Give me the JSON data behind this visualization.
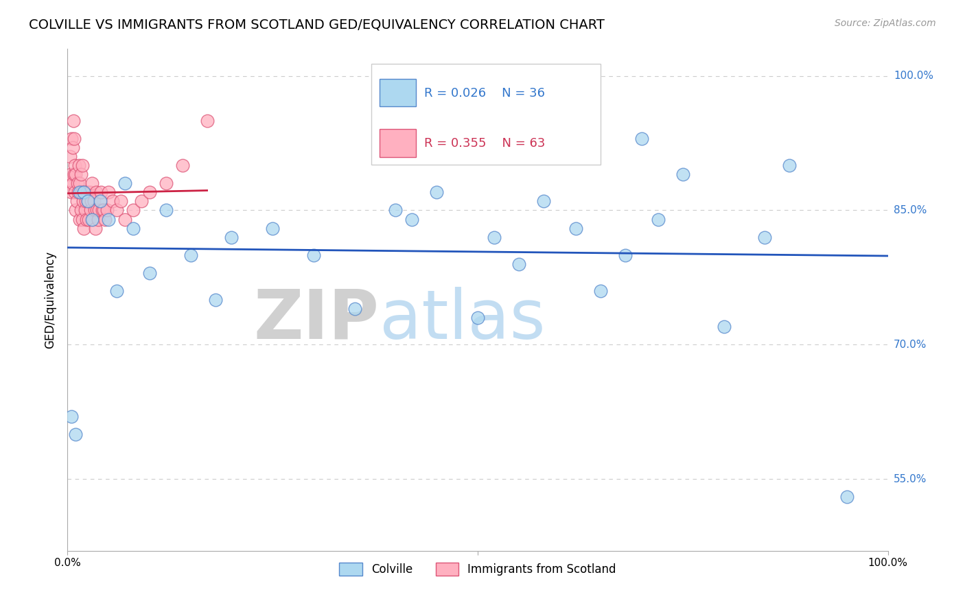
{
  "title": "COLVILLE VS IMMIGRANTS FROM SCOTLAND GED/EQUIVALENCY CORRELATION CHART",
  "source_text": "Source: ZipAtlas.com",
  "ylabel": "GED/Equivalency",
  "x_min": 0.0,
  "x_max": 1.0,
  "y_min": 0.47,
  "y_max": 1.03,
  "ytick_positions": [
    0.55,
    0.7,
    0.85,
    1.0
  ],
  "ytick_labels": [
    "55.0%",
    "70.0%",
    "85.0%",
    "100.0%"
  ],
  "xtick_positions": [
    0.0,
    0.5,
    1.0
  ],
  "xtick_labels": [
    "0.0%",
    "",
    "100.0%"
  ],
  "grid_color": "#cccccc",
  "colville_color": "#add8f0",
  "colville_edge_color": "#5588cc",
  "scotland_color": "#ffb0c0",
  "scotland_edge_color": "#dd5577",
  "colville_R": 0.026,
  "colville_N": 36,
  "scotland_R": 0.355,
  "scotland_N": 63,
  "colville_line_color": "#2255bb",
  "scotland_line_color": "#cc2244",
  "legend_R_color_colville": "#3377cc",
  "legend_R_color_scotland": "#cc3355",
  "colville_x": [
    0.005,
    0.01,
    0.015,
    0.02,
    0.025,
    0.03,
    0.04,
    0.05,
    0.06,
    0.07,
    0.08,
    0.1,
    0.12,
    0.15,
    0.18,
    0.2,
    0.25,
    0.3,
    0.35,
    0.4,
    0.42,
    0.45,
    0.5,
    0.52,
    0.55,
    0.58,
    0.62,
    0.65,
    0.68,
    0.7,
    0.72,
    0.75,
    0.8,
    0.85,
    0.88,
    0.95
  ],
  "colville_y": [
    0.62,
    0.6,
    0.87,
    0.87,
    0.86,
    0.84,
    0.86,
    0.84,
    0.76,
    0.88,
    0.83,
    0.78,
    0.85,
    0.8,
    0.75,
    0.82,
    0.83,
    0.8,
    0.74,
    0.85,
    0.84,
    0.87,
    0.73,
    0.82,
    0.79,
    0.86,
    0.83,
    0.76,
    0.8,
    0.93,
    0.84,
    0.89,
    0.72,
    0.82,
    0.9,
    0.53
  ],
  "scotland_x": [
    0.002,
    0.003,
    0.004,
    0.005,
    0.005,
    0.006,
    0.006,
    0.007,
    0.008,
    0.008,
    0.009,
    0.009,
    0.01,
    0.01,
    0.011,
    0.012,
    0.013,
    0.014,
    0.015,
    0.015,
    0.016,
    0.016,
    0.017,
    0.018,
    0.018,
    0.019,
    0.02,
    0.02,
    0.021,
    0.022,
    0.023,
    0.024,
    0.025,
    0.026,
    0.027,
    0.028,
    0.029,
    0.03,
    0.031,
    0.032,
    0.033,
    0.034,
    0.035,
    0.036,
    0.037,
    0.038,
    0.04,
    0.041,
    0.042,
    0.044,
    0.046,
    0.048,
    0.05,
    0.055,
    0.06,
    0.065,
    0.07,
    0.08,
    0.09,
    0.1,
    0.12,
    0.14,
    0.17
  ],
  "scotland_y": [
    0.88,
    0.91,
    0.89,
    0.87,
    0.93,
    0.88,
    0.92,
    0.95,
    0.89,
    0.93,
    0.87,
    0.9,
    0.85,
    0.89,
    0.86,
    0.88,
    0.87,
    0.9,
    0.84,
    0.88,
    0.85,
    0.89,
    0.87,
    0.84,
    0.9,
    0.86,
    0.83,
    0.87,
    0.85,
    0.86,
    0.84,
    0.87,
    0.86,
    0.84,
    0.87,
    0.85,
    0.86,
    0.88,
    0.84,
    0.86,
    0.85,
    0.83,
    0.87,
    0.85,
    0.84,
    0.85,
    0.86,
    0.87,
    0.85,
    0.85,
    0.84,
    0.85,
    0.87,
    0.86,
    0.85,
    0.86,
    0.84,
    0.85,
    0.86,
    0.87,
    0.88,
    0.9,
    0.95
  ]
}
